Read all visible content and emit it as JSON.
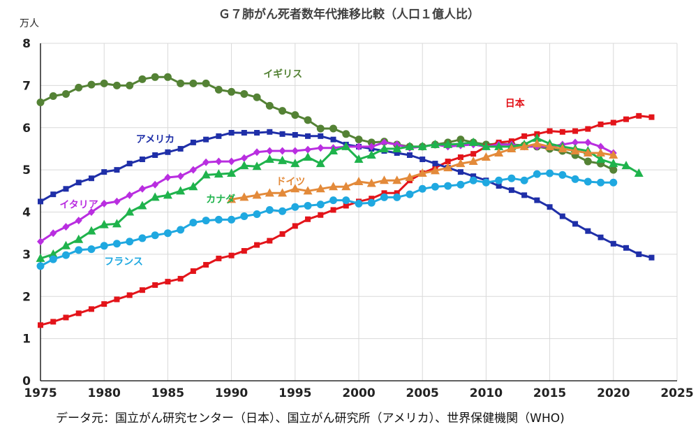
{
  "chart_data": {
    "type": "line",
    "title": "Ｇ７肺がん死者数年代推移比較（人口１億人比）",
    "unit_label": "万人",
    "xlim": [
      1975,
      2025
    ],
    "ylim": [
      0,
      8
    ],
    "x_ticks": [
      "1975",
      "1980",
      "1985",
      "1990",
      "1995",
      "2000",
      "2005",
      "2010",
      "2015",
      "2020",
      "2025"
    ],
    "y_ticks": [
      "0",
      "1",
      "2",
      "3",
      "4",
      "5",
      "6",
      "7",
      "8"
    ],
    "grid": true,
    "series": [
      {
        "name": "イギリス",
        "color": "#548235",
        "marker": "circle",
        "label_anchor": [
          1992.5,
          7.2
        ],
        "x": [
          1975,
          1976,
          1977,
          1978,
          1979,
          1980,
          1981,
          1982,
          1983,
          1984,
          1985,
          1986,
          1987,
          1988,
          1989,
          1990,
          1991,
          1992,
          1993,
          1994,
          1995,
          1996,
          1997,
          1998,
          1999,
          2000,
          2001,
          2002,
          2003,
          2004,
          2005,
          2006,
          2007,
          2008,
          2009,
          2010,
          2011,
          2012,
          2013,
          2014,
          2015,
          2016,
          2017,
          2018,
          2019,
          2020
        ],
        "y": [
          6.6,
          6.75,
          6.8,
          6.95,
          7.02,
          7.05,
          7.0,
          7.0,
          7.15,
          7.2,
          7.2,
          7.05,
          7.05,
          7.05,
          6.9,
          6.85,
          6.8,
          6.72,
          6.52,
          6.4,
          6.3,
          6.18,
          5.98,
          5.98,
          5.85,
          5.72,
          5.65,
          5.67,
          5.6,
          5.55,
          5.55,
          5.6,
          5.65,
          5.72,
          5.65,
          5.6,
          5.62,
          5.6,
          5.58,
          5.55,
          5.5,
          5.45,
          5.35,
          5.2,
          5.15,
          5.0
        ]
      },
      {
        "name": "日本",
        "color": "#e3141a",
        "marker": "square",
        "label_anchor": [
          2011.5,
          6.5
        ],
        "x": [
          1975,
          1976,
          1977,
          1978,
          1979,
          1980,
          1981,
          1982,
          1983,
          1984,
          1985,
          1986,
          1987,
          1988,
          1989,
          1990,
          1991,
          1992,
          1993,
          1994,
          1995,
          1996,
          1997,
          1998,
          1999,
          2000,
          2001,
          2002,
          2003,
          2004,
          2005,
          2006,
          2007,
          2008,
          2009,
          2010,
          2011,
          2012,
          2013,
          2014,
          2015,
          2016,
          2017,
          2018,
          2019,
          2020,
          2021,
          2022,
          2023
        ],
        "y": [
          1.32,
          1.4,
          1.5,
          1.6,
          1.7,
          1.82,
          1.93,
          2.03,
          2.15,
          2.27,
          2.35,
          2.42,
          2.6,
          2.75,
          2.9,
          2.97,
          3.08,
          3.22,
          3.32,
          3.48,
          3.67,
          3.83,
          3.93,
          4.05,
          4.15,
          4.25,
          4.32,
          4.45,
          4.45,
          4.75,
          4.92,
          5.05,
          5.2,
          5.3,
          5.38,
          5.55,
          5.65,
          5.68,
          5.8,
          5.85,
          5.92,
          5.9,
          5.92,
          5.97,
          6.08,
          6.12,
          6.2,
          6.28,
          6.25
        ]
      },
      {
        "name": "アメリカ",
        "color": "#1f2fa8",
        "marker": "square",
        "label_anchor": [
          1982.5,
          5.65
        ],
        "x": [
          1975,
          1976,
          1977,
          1978,
          1979,
          1980,
          1981,
          1982,
          1983,
          1984,
          1985,
          1986,
          1987,
          1988,
          1989,
          1990,
          1991,
          1992,
          1993,
          1994,
          1995,
          1996,
          1997,
          1998,
          1999,
          2000,
          2001,
          2002,
          2003,
          2004,
          2005,
          2006,
          2007,
          2008,
          2009,
          2010,
          2011,
          2012,
          2013,
          2014,
          2015,
          2016,
          2017,
          2018,
          2019,
          2020,
          2021,
          2022,
          2023
        ],
        "y": [
          4.25,
          4.42,
          4.55,
          4.7,
          4.8,
          4.95,
          5.0,
          5.15,
          5.25,
          5.35,
          5.42,
          5.5,
          5.65,
          5.72,
          5.8,
          5.88,
          5.88,
          5.88,
          5.9,
          5.85,
          5.83,
          5.8,
          5.8,
          5.72,
          5.6,
          5.55,
          5.5,
          5.45,
          5.4,
          5.35,
          5.25,
          5.15,
          5.05,
          4.95,
          4.85,
          4.75,
          4.62,
          4.52,
          4.4,
          4.28,
          4.12,
          3.9,
          3.72,
          3.55,
          3.4,
          3.25,
          3.15,
          3.0,
          2.92
        ]
      },
      {
        "name": "イタリア",
        "color": "#b92ee0",
        "marker": "diamond",
        "label_anchor": [
          1976.5,
          4.1
        ],
        "x": [
          1975,
          1976,
          1977,
          1978,
          1979,
          1980,
          1981,
          1982,
          1983,
          1984,
          1985,
          1986,
          1987,
          1988,
          1989,
          1990,
          1991,
          1992,
          1993,
          1994,
          1995,
          1996,
          1997,
          1998,
          1999,
          2000,
          2001,
          2002,
          2003,
          2004,
          2005,
          2006,
          2007,
          2008,
          2009,
          2010,
          2011,
          2012,
          2013,
          2014,
          2015,
          2016,
          2017,
          2018,
          2019,
          2020
        ],
        "y": [
          3.3,
          3.5,
          3.65,
          3.8,
          4.0,
          4.2,
          4.25,
          4.4,
          4.55,
          4.65,
          4.82,
          4.85,
          5.0,
          5.18,
          5.2,
          5.2,
          5.28,
          5.42,
          5.45,
          5.45,
          5.45,
          5.48,
          5.52,
          5.52,
          5.55,
          5.55,
          5.55,
          5.65,
          5.6,
          5.52,
          5.55,
          5.6,
          5.55,
          5.58,
          5.6,
          5.55,
          5.6,
          5.6,
          5.55,
          5.55,
          5.55,
          5.6,
          5.65,
          5.65,
          5.55,
          5.4
        ]
      },
      {
        "name": "カナダ",
        "color": "#1fb34c",
        "marker": "triangle",
        "label_anchor": [
          1988,
          4.22
        ],
        "x": [
          1975,
          1976,
          1977,
          1978,
          1979,
          1980,
          1981,
          1982,
          1983,
          1984,
          1985,
          1986,
          1987,
          1988,
          1989,
          1990,
          1991,
          1992,
          1993,
          1994,
          1995,
          1996,
          1997,
          1998,
          1999,
          2000,
          2001,
          2002,
          2003,
          2004,
          2005,
          2006,
          2007,
          2008,
          2009,
          2010,
          2011,
          2012,
          2013,
          2014,
          2015,
          2016,
          2017,
          2018,
          2019,
          2020,
          2021,
          2022
        ],
        "y": [
          2.9,
          3.0,
          3.2,
          3.35,
          3.55,
          3.7,
          3.72,
          4.0,
          4.15,
          4.35,
          4.4,
          4.5,
          4.6,
          4.88,
          4.9,
          4.92,
          5.1,
          5.08,
          5.25,
          5.22,
          5.15,
          5.3,
          5.15,
          5.45,
          5.55,
          5.25,
          5.35,
          5.5,
          5.5,
          5.55,
          5.55,
          5.6,
          5.6,
          5.62,
          5.65,
          5.55,
          5.55,
          5.55,
          5.6,
          5.75,
          5.62,
          5.55,
          5.5,
          5.45,
          5.25,
          5.15,
          5.1,
          4.92
        ]
      },
      {
        "name": "ドイツ",
        "color": "#e38a3a",
        "marker": "triangle",
        "label_anchor": [
          1993.5,
          4.65
        ],
        "x": [
          1990,
          1991,
          1992,
          1993,
          1994,
          1995,
          1996,
          1997,
          1998,
          1999,
          2000,
          2001,
          2002,
          2003,
          2004,
          2005,
          2006,
          2007,
          2008,
          2009,
          2010,
          2011,
          2012,
          2013,
          2014,
          2015,
          2016,
          2017,
          2018,
          2019,
          2020
        ],
        "y": [
          4.3,
          4.35,
          4.4,
          4.45,
          4.45,
          4.55,
          4.5,
          4.55,
          4.6,
          4.6,
          4.72,
          4.68,
          4.75,
          4.75,
          4.82,
          4.92,
          4.98,
          5.05,
          5.15,
          5.2,
          5.3,
          5.4,
          5.5,
          5.55,
          5.62,
          5.55,
          5.5,
          5.45,
          5.4,
          5.4,
          5.35
        ]
      },
      {
        "name": "フランス",
        "color": "#1fa8e0",
        "marker": "circle",
        "label_anchor": [
          1980,
          2.75
        ],
        "x": [
          1975,
          1976,
          1977,
          1978,
          1979,
          1980,
          1981,
          1982,
          1983,
          1984,
          1985,
          1986,
          1987,
          1988,
          1989,
          1990,
          1991,
          1992,
          1993,
          1994,
          1995,
          1996,
          1997,
          1998,
          1999,
          2000,
          2001,
          2002,
          2003,
          2004,
          2005,
          2006,
          2007,
          2008,
          2009,
          2010,
          2011,
          2012,
          2013,
          2014,
          2015,
          2016,
          2017,
          2018,
          2019,
          2020
        ],
        "y": [
          2.72,
          2.88,
          2.98,
          3.1,
          3.12,
          3.2,
          3.25,
          3.3,
          3.38,
          3.45,
          3.5,
          3.58,
          3.75,
          3.8,
          3.82,
          3.82,
          3.9,
          3.95,
          4.05,
          4.02,
          4.12,
          4.15,
          4.18,
          4.28,
          4.28,
          4.2,
          4.22,
          4.35,
          4.35,
          4.42,
          4.55,
          4.6,
          4.62,
          4.65,
          4.75,
          4.7,
          4.75,
          4.8,
          4.75,
          4.9,
          4.92,
          4.88,
          4.78,
          4.72,
          4.7,
          4.7
        ]
      }
    ]
  },
  "source": "データ元：国立がん研究センター（日本）、国立がん研究所（アメリカ）、世界保健機関（WHO)"
}
